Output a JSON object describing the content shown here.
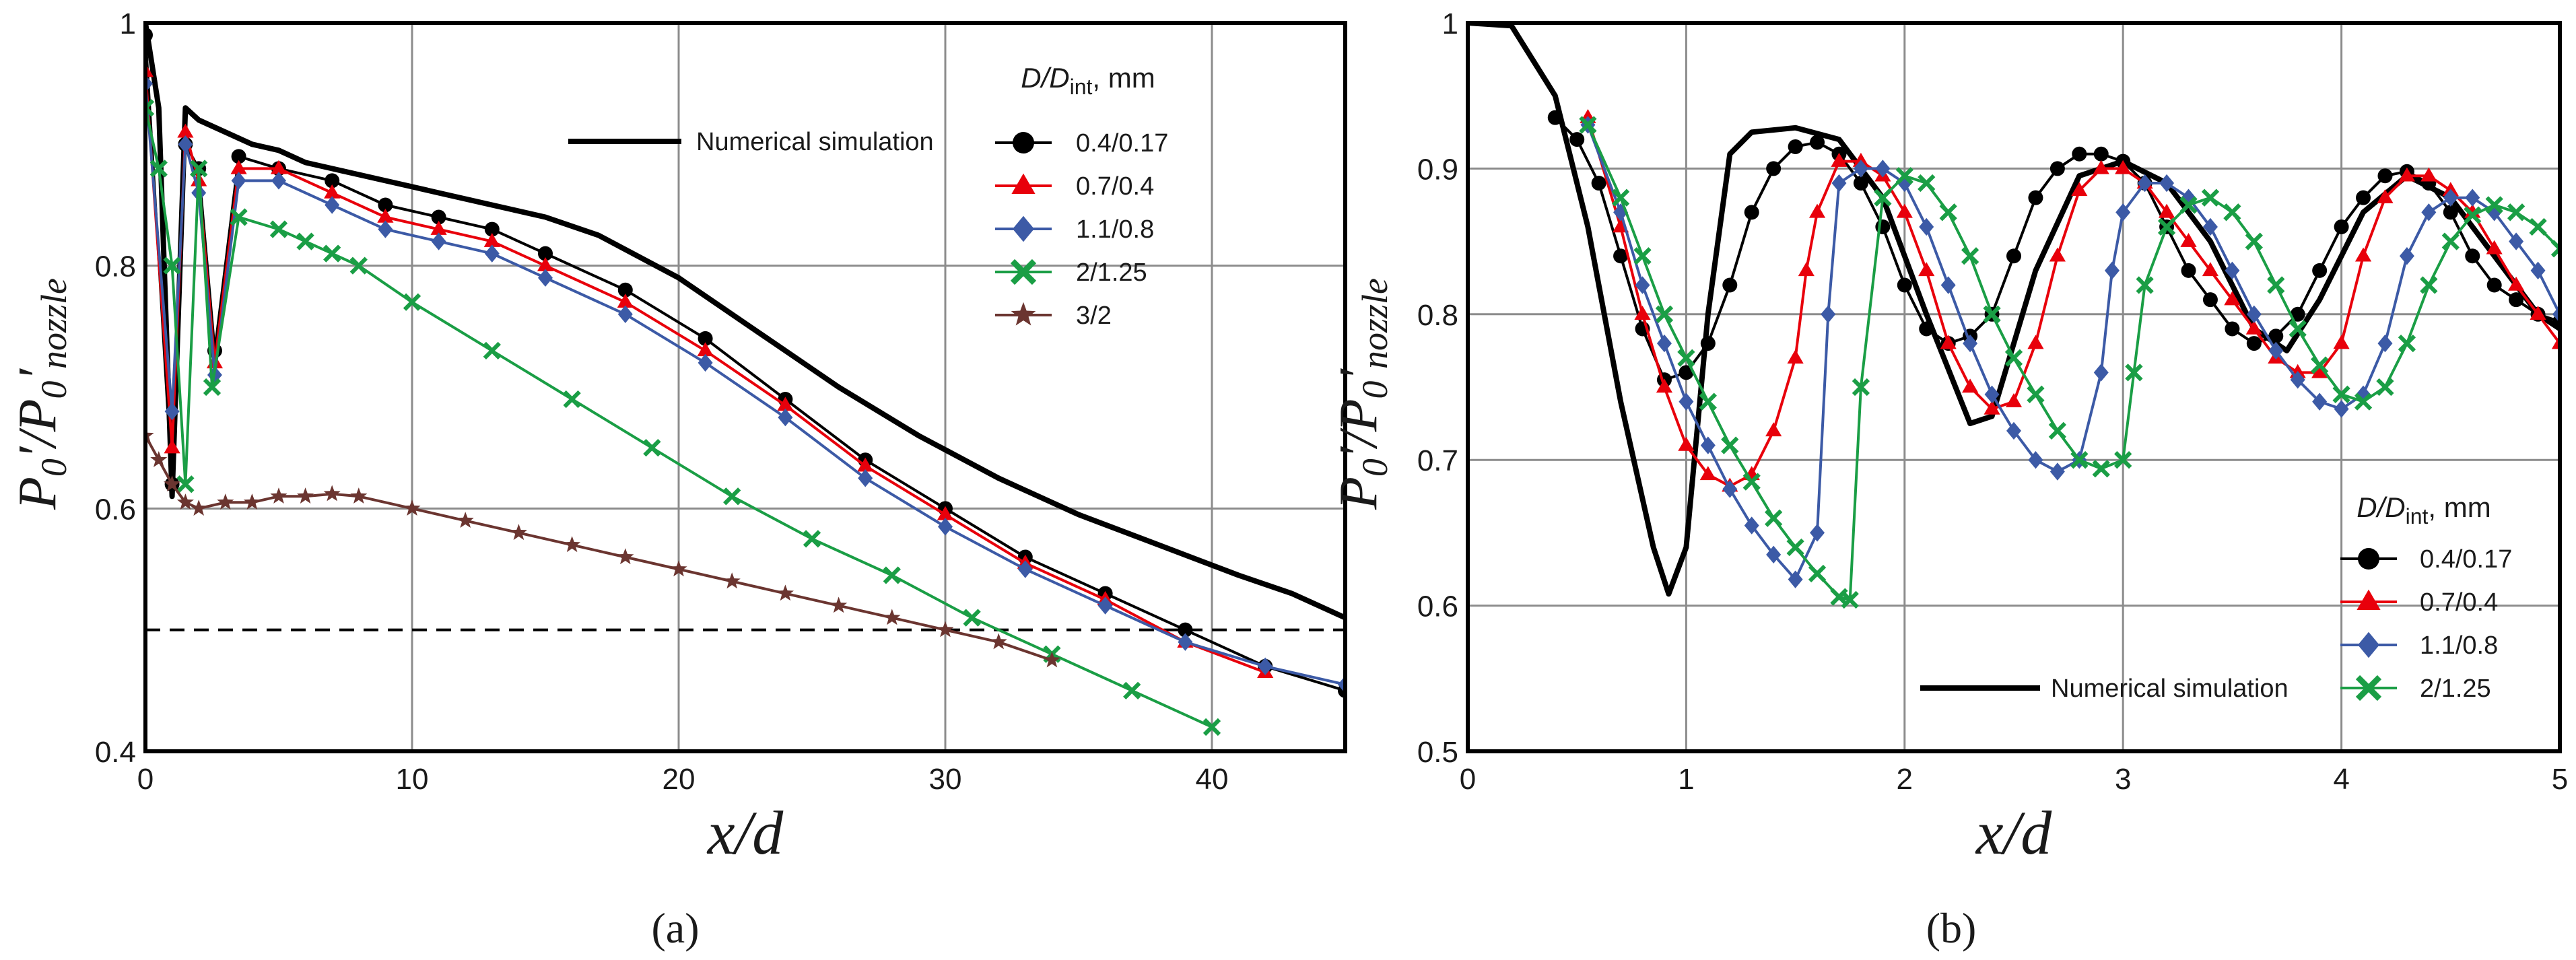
{
  "chart_data": [
    {
      "panel": "a",
      "type": "line",
      "panel_label": "(a)",
      "xlabel": "x/d",
      "ylabel": "P0′/P0′nozzle",
      "xlim": [
        0,
        45
      ],
      "ylim": [
        0.4,
        1
      ],
      "xticks": [
        0,
        10,
        20,
        30,
        40
      ],
      "yticks": [
        0.4,
        0.6,
        0.8,
        1
      ],
      "ytick_labels": [
        "0.4",
        "0.6",
        "0.8",
        "1"
      ],
      "reference_line": {
        "y": 0.5,
        "style": "dashed"
      },
      "legend_title": "D/Dint, mm",
      "legend_title_parts": {
        "base": "D/D",
        "sub": "int",
        "tail": ", mm"
      },
      "series": [
        {
          "name": "Numerical simulation",
          "color": "#000000",
          "marker": "none",
          "x": [
            0,
            0.5,
            1,
            1.5,
            2,
            3,
            4,
            5,
            6,
            7,
            8,
            9,
            10,
            11,
            12,
            13,
            14,
            15,
            17,
            20,
            23,
            26,
            29,
            32,
            35,
            38,
            41,
            43,
            45
          ],
          "y": [
            1.0,
            0.93,
            0.61,
            0.93,
            0.92,
            0.91,
            0.9,
            0.895,
            0.885,
            0.88,
            0.875,
            0.87,
            0.865,
            0.86,
            0.855,
            0.85,
            0.845,
            0.84,
            0.825,
            0.79,
            0.745,
            0.7,
            0.66,
            0.625,
            0.595,
            0.57,
            0.545,
            0.53,
            0.51
          ]
        },
        {
          "name": "0.4/0.17",
          "color": "#000000",
          "marker": "circle",
          "x": [
            0,
            1,
            1.5,
            2,
            2.6,
            3.5,
            5,
            7,
            9,
            11,
            13,
            15,
            18,
            21,
            24,
            27,
            30,
            33,
            36,
            39,
            42,
            45
          ],
          "y": [
            0.99,
            0.62,
            0.9,
            0.88,
            0.73,
            0.89,
            0.88,
            0.87,
            0.85,
            0.84,
            0.83,
            0.81,
            0.78,
            0.74,
            0.69,
            0.64,
            0.6,
            0.56,
            0.53,
            0.5,
            0.47,
            0.45
          ]
        },
        {
          "name": "0.7/0.4",
          "color": "#e8000b",
          "marker": "triangle",
          "x": [
            0,
            1,
            1.5,
            2,
            2.6,
            3.5,
            5,
            7,
            9,
            11,
            13,
            15,
            18,
            21,
            24,
            27,
            30,
            33,
            36,
            39,
            42
          ],
          "y": [
            0.96,
            0.65,
            0.91,
            0.87,
            0.72,
            0.88,
            0.88,
            0.86,
            0.84,
            0.83,
            0.82,
            0.8,
            0.77,
            0.73,
            0.685,
            0.635,
            0.595,
            0.555,
            0.525,
            0.49,
            0.465
          ]
        },
        {
          "name": "1.1/0.8",
          "color": "#3c5aa6",
          "marker": "diamond",
          "x": [
            0,
            1,
            1.5,
            2,
            2.6,
            3.5,
            5,
            7,
            9,
            11,
            13,
            15,
            18,
            21,
            24,
            27,
            30,
            33,
            36,
            39,
            42,
            45
          ],
          "y": [
            0.95,
            0.68,
            0.9,
            0.86,
            0.71,
            0.87,
            0.87,
            0.85,
            0.83,
            0.82,
            0.81,
            0.79,
            0.76,
            0.72,
            0.675,
            0.625,
            0.585,
            0.55,
            0.52,
            0.49,
            0.47,
            0.455
          ]
        },
        {
          "name": "2/1.25",
          "color": "#1a9e45",
          "marker": "cross",
          "x": [
            0,
            0.5,
            1,
            1.5,
            2,
            2.5,
            3.5,
            5,
            6,
            7,
            8,
            10,
            13,
            16,
            19,
            22,
            25,
            28,
            31,
            34,
            37,
            40
          ],
          "y": [
            0.93,
            0.88,
            0.8,
            0.62,
            0.88,
            0.7,
            0.84,
            0.83,
            0.82,
            0.81,
            0.8,
            0.77,
            0.73,
            0.69,
            0.65,
            0.61,
            0.575,
            0.545,
            0.51,
            0.48,
            0.45,
            0.42
          ]
        },
        {
          "name": "3/2",
          "color": "#6b3530",
          "marker": "star",
          "x": [
            0,
            0.5,
            1,
            1.5,
            2,
            3,
            4,
            5,
            6,
            7,
            8,
            10,
            12,
            14,
            16,
            18,
            20,
            22,
            24,
            26,
            28,
            30,
            32,
            34
          ],
          "y": [
            0.66,
            0.64,
            0.62,
            0.605,
            0.6,
            0.605,
            0.605,
            0.61,
            0.61,
            0.612,
            0.61,
            0.6,
            0.59,
            0.58,
            0.57,
            0.56,
            0.55,
            0.54,
            0.53,
            0.52,
            0.51,
            0.5,
            0.49,
            0.475
          ]
        }
      ]
    },
    {
      "panel": "b",
      "type": "line",
      "panel_label": "(b)",
      "xlabel": "x/d",
      "ylabel": "P0′/P0′nozzle",
      "xlim": [
        0,
        5
      ],
      "ylim": [
        0.5,
        1
      ],
      "xticks": [
        0,
        1,
        2,
        3,
        4,
        5
      ],
      "yticks": [
        0.5,
        0.6,
        0.7,
        0.8,
        0.9,
        1
      ],
      "ytick_labels": [
        "0.5",
        "0.6",
        "0.7",
        "0.8",
        "0.9",
        "1"
      ],
      "legend_title": "D/Dint, mm",
      "legend_title_parts": {
        "base": "D/D",
        "sub": "int",
        "tail": ", mm"
      },
      "series": [
        {
          "name": "Numerical simulation",
          "color": "#000000",
          "marker": "none",
          "x": [
            0,
            0.2,
            0.4,
            0.55,
            0.7,
            0.85,
            0.92,
            1.0,
            1.1,
            1.2,
            1.3,
            1.5,
            1.7,
            1.9,
            2.1,
            2.3,
            2.4,
            2.6,
            2.8,
            3.0,
            3.2,
            3.4,
            3.6,
            3.75,
            3.9,
            4.1,
            4.3,
            4.5,
            4.7,
            4.9,
            5.0
          ],
          "y": [
            1.0,
            0.998,
            0.95,
            0.86,
            0.74,
            0.64,
            0.608,
            0.64,
            0.8,
            0.91,
            0.925,
            0.928,
            0.92,
            0.88,
            0.8,
            0.725,
            0.73,
            0.83,
            0.895,
            0.905,
            0.89,
            0.85,
            0.79,
            0.775,
            0.81,
            0.87,
            0.895,
            0.88,
            0.84,
            0.8,
            0.79
          ]
        },
        {
          "name": "0.4/0.17",
          "color": "#000000",
          "marker": "circle",
          "x": [
            0.4,
            0.5,
            0.6,
            0.7,
            0.8,
            0.9,
            1.0,
            1.1,
            1.2,
            1.3,
            1.4,
            1.5,
            1.6,
            1.7,
            1.8,
            1.9,
            2.0,
            2.1,
            2.2,
            2.3,
            2.4,
            2.5,
            2.6,
            2.7,
            2.8,
            2.9,
            3.0,
            3.1,
            3.2,
            3.3,
            3.4,
            3.5,
            3.6,
            3.7,
            3.8,
            3.9,
            4.0,
            4.1,
            4.2,
            4.3,
            4.4,
            4.5,
            4.6,
            4.7,
            4.8,
            4.9,
            5.0
          ],
          "y": [
            0.935,
            0.92,
            0.89,
            0.84,
            0.79,
            0.755,
            0.76,
            0.78,
            0.82,
            0.87,
            0.9,
            0.915,
            0.918,
            0.91,
            0.89,
            0.86,
            0.82,
            0.79,
            0.78,
            0.785,
            0.8,
            0.84,
            0.88,
            0.9,
            0.91,
            0.91,
            0.905,
            0.89,
            0.86,
            0.83,
            0.81,
            0.79,
            0.78,
            0.785,
            0.8,
            0.83,
            0.86,
            0.88,
            0.895,
            0.898,
            0.89,
            0.87,
            0.84,
            0.82,
            0.81,
            0.8,
            0.795
          ]
        },
        {
          "name": "0.7/0.4",
          "color": "#e8000b",
          "marker": "triangle",
          "x": [
            0.55,
            0.7,
            0.8,
            0.9,
            1.0,
            1.1,
            1.2,
            1.3,
            1.4,
            1.5,
            1.55,
            1.6,
            1.7,
            1.8,
            1.9,
            2.0,
            2.1,
            2.2,
            2.3,
            2.4,
            2.5,
            2.6,
            2.7,
            2.8,
            2.9,
            3.0,
            3.1,
            3.2,
            3.3,
            3.4,
            3.5,
            3.6,
            3.7,
            3.8,
            3.9,
            4.0,
            4.1,
            4.2,
            4.3,
            4.4,
            4.5,
            4.6,
            4.7,
            4.8,
            4.9,
            5.0
          ],
          "y": [
            0.935,
            0.86,
            0.8,
            0.75,
            0.71,
            0.69,
            0.682,
            0.69,
            0.72,
            0.77,
            0.83,
            0.87,
            0.905,
            0.905,
            0.895,
            0.87,
            0.83,
            0.78,
            0.75,
            0.735,
            0.74,
            0.78,
            0.84,
            0.885,
            0.9,
            0.9,
            0.89,
            0.87,
            0.85,
            0.83,
            0.81,
            0.79,
            0.77,
            0.76,
            0.76,
            0.78,
            0.84,
            0.88,
            0.895,
            0.895,
            0.885,
            0.87,
            0.845,
            0.82,
            0.8,
            0.78
          ]
        },
        {
          "name": "1.1/0.8",
          "color": "#3c5aa6",
          "marker": "diamond",
          "x": [
            0.55,
            0.7,
            0.8,
            0.9,
            1.0,
            1.1,
            1.2,
            1.3,
            1.4,
            1.5,
            1.6,
            1.65,
            1.7,
            1.8,
            1.9,
            2.0,
            2.1,
            2.2,
            2.3,
            2.4,
            2.5,
            2.6,
            2.7,
            2.8,
            2.9,
            2.95,
            3.0,
            3.1,
            3.2,
            3.3,
            3.4,
            3.5,
            3.6,
            3.7,
            3.8,
            3.9,
            4.0,
            4.1,
            4.2,
            4.3,
            4.4,
            4.5,
            4.6,
            4.7,
            4.8,
            4.9,
            5.0
          ],
          "y": [
            0.93,
            0.87,
            0.82,
            0.78,
            0.74,
            0.71,
            0.68,
            0.655,
            0.635,
            0.618,
            0.65,
            0.8,
            0.89,
            0.9,
            0.9,
            0.89,
            0.86,
            0.82,
            0.78,
            0.745,
            0.72,
            0.7,
            0.692,
            0.7,
            0.76,
            0.83,
            0.87,
            0.89,
            0.89,
            0.88,
            0.86,
            0.83,
            0.8,
            0.775,
            0.755,
            0.74,
            0.735,
            0.745,
            0.78,
            0.84,
            0.87,
            0.88,
            0.88,
            0.87,
            0.85,
            0.83,
            0.8
          ]
        },
        {
          "name": "2/1.25",
          "color": "#1a9e45",
          "marker": "cross",
          "x": [
            0.55,
            0.7,
            0.8,
            0.9,
            1.0,
            1.1,
            1.2,
            1.3,
            1.4,
            1.5,
            1.6,
            1.7,
            1.75,
            1.8,
            1.9,
            2.0,
            2.1,
            2.2,
            2.3,
            2.4,
            2.5,
            2.6,
            2.7,
            2.8,
            2.9,
            3.0,
            3.05,
            3.1,
            3.2,
            3.3,
            3.4,
            3.5,
            3.6,
            3.7,
            3.8,
            3.9,
            4.0,
            4.1,
            4.2,
            4.3,
            4.4,
            4.5,
            4.6,
            4.7,
            4.8,
            4.9,
            5.0
          ],
          "y": [
            0.93,
            0.88,
            0.84,
            0.8,
            0.77,
            0.74,
            0.71,
            0.685,
            0.66,
            0.64,
            0.622,
            0.606,
            0.604,
            0.75,
            0.88,
            0.895,
            0.89,
            0.87,
            0.84,
            0.8,
            0.77,
            0.745,
            0.72,
            0.7,
            0.694,
            0.7,
            0.76,
            0.82,
            0.86,
            0.875,
            0.88,
            0.87,
            0.85,
            0.82,
            0.79,
            0.765,
            0.745,
            0.74,
            0.75,
            0.78,
            0.82,
            0.85,
            0.868,
            0.875,
            0.87,
            0.86,
            0.845
          ]
        }
      ]
    }
  ]
}
